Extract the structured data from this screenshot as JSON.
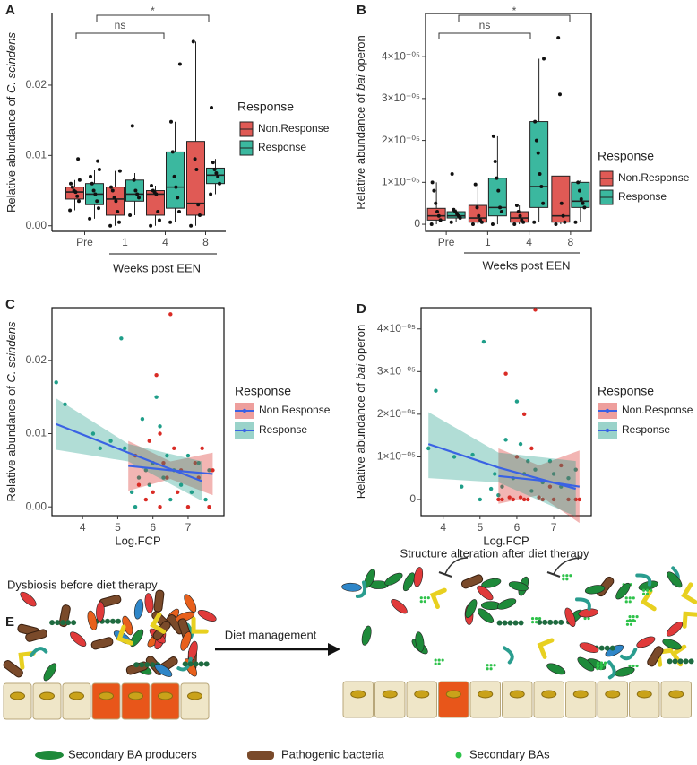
{
  "chart_data": [
    {
      "type": "box",
      "panel": "A",
      "ylabel": [
        {
          "text": "Relative abundance of "
        },
        {
          "text": "C. scindens",
          "italic": true
        }
      ],
      "xlabel": "Weeks post EEN",
      "categories": [
        "Pre",
        "1",
        "4",
        "8"
      ],
      "ylim": [
        -0.0008,
        0.0302
      ],
      "yticks": [
        {
          "value": 0,
          "label": "0.00"
        },
        0.01,
        0.02
      ],
      "annotations": [
        "ns",
        "*"
      ],
      "legend_title": "Response",
      "series": [
        {
          "name": "Non.Response",
          "color": "#e05a55",
          "boxes": [
            {
              "min": 0.0022,
              "q1": 0.0038,
              "median": 0.0048,
              "q3": 0.0055,
              "max": 0.0065,
              "points": [
                0.0022,
                0.0035,
                0.0042,
                0.0048,
                0.005,
                0.0055,
                0.006,
                0.0065,
                0.0095
              ]
            },
            {
              "min": 0,
              "q1": 0.0015,
              "median": 0.0038,
              "q3": 0.0055,
              "max": 0.0078,
              "points": [
                0,
                0.0005,
                0.002,
                0.0035,
                0.004,
                0.005,
                0.0055,
                0.0078
              ]
            },
            {
              "min": 0,
              "q1": 0.0015,
              "median": 0.0045,
              "q3": 0.005,
              "max": 0.0057,
              "points": [
                0,
                0.0008,
                0.002,
                0.0045,
                0.0048,
                0.005,
                0.0057
              ]
            },
            {
              "min": 0,
              "q1": 0.0015,
              "median": 0.0032,
              "q3": 0.012,
              "max": 0.0262,
              "points": [
                0,
                0.0015,
                0.003,
                0.008,
                0.0095,
                0.0262
              ]
            }
          ]
        },
        {
          "name": "Response",
          "color": "#3bb89f",
          "boxes": [
            {
              "min": 0.001,
              "q1": 0.003,
              "median": 0.0045,
              "q3": 0.006,
              "max": 0.008,
              "points": [
                0.001,
                0.0025,
                0.0035,
                0.0045,
                0.005,
                0.006,
                0.007,
                0.008,
                0.0092
              ]
            },
            {
              "min": 0.0015,
              "q1": 0.0035,
              "median": 0.0045,
              "q3": 0.0065,
              "max": 0.0075,
              "points": [
                0.0015,
                0.004,
                0.0045,
                0.005,
                0.0065,
                0.0142
              ]
            },
            {
              "min": 0.0005,
              "q1": 0.0025,
              "median": 0.0055,
              "q3": 0.0105,
              "max": 0.0148,
              "points": [
                0.0005,
                0.002,
                0.004,
                0.0055,
                0.007,
                0.0105,
                0.0148,
                0.023
              ]
            },
            {
              "min": 0.0045,
              "q1": 0.006,
              "median": 0.0072,
              "q3": 0.0082,
              "max": 0.0095,
              "points": [
                0.0045,
                0.006,
                0.007,
                0.0075,
                0.008,
                0.009,
                0.0168
              ]
            }
          ]
        }
      ]
    },
    {
      "type": "box",
      "panel": "B",
      "ylabel": [
        {
          "text": "Relative abundance of "
        },
        {
          "text": "bai",
          "italic": true
        },
        {
          "text": " operon"
        }
      ],
      "xlabel": "Weeks post EEN",
      "categories": [
        "Pre",
        "1",
        "4",
        "8"
      ],
      "ylim": [
        -1.7e-06,
        5.03e-05
      ],
      "yticks": [
        0,
        {
          "value": 1e-05,
          "label": "1×10⁻⁰⁵"
        },
        {
          "value": 2e-05,
          "label": "2×10⁻⁰⁵"
        },
        {
          "value": 3e-05,
          "label": "3×10⁻⁰⁵"
        },
        {
          "value": 4e-05,
          "label": "4×10⁻⁰⁵"
        }
      ],
      "annotations": [
        "ns",
        "*"
      ],
      "legend_title": "Response",
      "series": [
        {
          "name": "Non.Response",
          "color": "#e05a55",
          "boxes": [
            {
              "min": 0,
              "q1": 1e-06,
              "median": 2e-06,
              "q3": 3.8e-06,
              "max": 1e-05,
              "points": [
                0,
                1e-06,
                2e-06,
                3e-06,
                5e-06,
                8e-06,
                1e-05
              ]
            },
            {
              "min": 0,
              "q1": 5e-07,
              "median": 1.5e-06,
              "q3": 4.5e-06,
              "max": 9.5e-06,
              "points": [
                0,
                5e-07,
                1e-06,
                2e-06,
                4e-06,
                9.5e-06
              ]
            },
            {
              "min": 0,
              "q1": 5e-07,
              "median": 1.5e-06,
              "q3": 3e-06,
              "max": 4.5e-06,
              "points": [
                0,
                5e-07,
                1e-06,
                2e-06,
                3e-06,
                4.5e-06
              ]
            },
            {
              "min": 0,
              "q1": 5e-07,
              "median": 2e-06,
              "q3": 1.15e-05,
              "max": 1.15e-05,
              "points": [
                0,
                5e-07,
                2e-06,
                5e-06,
                3.1e-05,
                4.45e-05
              ]
            }
          ]
        },
        {
          "name": "Response",
          "color": "#3bb89f",
          "boxes": [
            {
              "min": 5e-07,
              "q1": 1.5e-06,
              "median": 2e-06,
              "q3": 3e-06,
              "max": 3.5e-06,
              "points": [
                5e-07,
                1.5e-06,
                2e-06,
                2.5e-06,
                3e-06,
                3.5e-06,
                1.2e-05
              ]
            },
            {
              "min": 0,
              "q1": 2e-06,
              "median": 4e-06,
              "q3": 1.1e-05,
              "max": 2.1e-05,
              "points": [
                0,
                3e-06,
                4e-06,
                8e-06,
                1.1e-05,
                1.5e-05,
                2.1e-05
              ]
            },
            {
              "min": 5e-07,
              "q1": 4e-06,
              "median": 9e-06,
              "q3": 2.45e-05,
              "max": 3.95e-05,
              "points": [
                5e-07,
                5e-06,
                9e-06,
                1.2e-05,
                1.7e-05,
                2e-05,
                2.45e-05,
                3.95e-05
              ]
            },
            {
              "min": 5e-07,
              "q1": 4e-06,
              "median": 5.5e-06,
              "q3": 1e-05,
              "max": 1.05e-05,
              "points": [
                5e-07,
                4e-06,
                5e-06,
                6e-06,
                8e-06,
                1e-05
              ]
            }
          ]
        }
      ]
    },
    {
      "type": "scatter",
      "panel": "C",
      "ylabel": [
        {
          "text": "Relative abundance of "
        },
        {
          "text": "C. scindens",
          "italic": true
        }
      ],
      "xlabel": "Log.FCP",
      "xlim": [
        3.13,
        8.02
      ],
      "xticks": [
        4,
        5,
        6,
        7
      ],
      "ylim": [
        -0.0012,
        0.0272
      ],
      "yticks": [
        {
          "value": 0,
          "label": "0.00"
        },
        0.01,
        0.02
      ],
      "legend_title": "Response",
      "fit_color": "#3a62e4",
      "series": [
        {
          "name": "Non.Response",
          "color": "#d92b25",
          "x": [
            5.5,
            5.6,
            5.8,
            5.9,
            6.0,
            6.1,
            6.2,
            6.2,
            6.3,
            6.4,
            6.5,
            6.6,
            6.7,
            6.8,
            7.0,
            7.2,
            7.3,
            7.4,
            7.6,
            7.7
          ],
          "values": [
            0.007,
            0.003,
            0.001,
            0.009,
            0.002,
            0.018,
            0.01,
            0,
            0.006,
            0.004,
            0.0263,
            0.008,
            0.002,
            0.005,
            0,
            0.006,
            0.004,
            0.008,
            0,
            0.005
          ],
          "fit": {
            "x": [
              5.3,
              6.5,
              7.7
            ],
            "values": [
              0.0056,
              0.005,
              0.0045
            ],
            "lower": [
              0.0022,
              0.0038,
              0.0016
            ],
            "upper": [
              0.009,
              0.0062,
              0.0074
            ]
          }
        },
        {
          "name": "Response",
          "color": "#1f9e89",
          "x": [
            3.25,
            3.5,
            4.3,
            4.5,
            4.8,
            5.1,
            5.2,
            5.4,
            5.5,
            5.6,
            5.7,
            5.8,
            5.9,
            6.0,
            6.1,
            6.2,
            6.3,
            6.4,
            6.5,
            6.6,
            6.8,
            7.0,
            7.1,
            7.3,
            7.5,
            7.6
          ],
          "values": [
            0.017,
            0.014,
            0.01,
            0.008,
            0.009,
            0.023,
            0.008,
            0.002,
            0,
            0.004,
            0.012,
            0.005,
            0.003,
            0.006,
            0.015,
            0.011,
            0.004,
            0.007,
            0.001,
            0.005,
            0.003,
            0.007,
            0.002,
            0.006,
            0.001,
            0.005
          ],
          "fit": {
            "x": [
              3.25,
              5.3,
              7.4
            ],
            "values": [
              0.0113,
              0.0074,
              0.0035
            ],
            "lower": [
              0.0078,
              0.0062,
              0.0008
            ],
            "upper": [
              0.0148,
              0.0086,
              0.0062
            ]
          }
        }
      ]
    },
    {
      "type": "scatter",
      "panel": "D",
      "ylabel": [
        {
          "text": "Relative abundance of "
        },
        {
          "text": "bai",
          "italic": true
        },
        {
          "text": " operon"
        }
      ],
      "xlabel": "Log.FCP",
      "xlim": [
        3.4,
        8.02
      ],
      "xticks": [
        4,
        5,
        6,
        7
      ],
      "ylim": [
        -3.8e-06,
        4.5e-05
      ],
      "yticks": [
        0,
        {
          "value": 1e-05,
          "label": "1×10⁻⁰⁵"
        },
        {
          "value": 2e-05,
          "label": "2×10⁻⁰⁵"
        },
        {
          "value": 3e-05,
          "label": "3×10⁻⁰⁵"
        },
        {
          "value": 4e-05,
          "label": "4×10⁻⁰⁵"
        }
      ],
      "legend_title": "Response",
      "fit_color": "#3a62e4",
      "series": [
        {
          "name": "Non.Response",
          "color": "#d92b25",
          "x": [
            5.5,
            5.6,
            5.7,
            5.8,
            5.9,
            6.0,
            6.1,
            6.2,
            6.2,
            6.3,
            6.4,
            6.5,
            6.6,
            6.7,
            6.9,
            7.0,
            7.2,
            7.4,
            7.6,
            7.7
          ],
          "values": [
            0,
            0,
            2.95e-05,
            5e-07,
            0,
            1e-05,
            5e-07,
            2e-05,
            0,
            0,
            1.2e-05,
            4.45e-05,
            5e-07,
            0,
            3e-06,
            0,
            8e-06,
            0,
            0,
            0
          ],
          "fit": {
            "x": [
              5.5,
              6.6,
              7.7
            ],
            "values": [
              5.5e-06,
              4.5e-06,
              3e-06
            ],
            "lower": [
              -1e-06,
              1e-06,
              -5.5e-06
            ],
            "upper": [
              1.2e-05,
              8e-06,
              1.15e-05
            ]
          }
        },
        {
          "name": "Response",
          "color": "#1f9e89",
          "x": [
            3.6,
            3.8,
            4.3,
            4.5,
            4.8,
            5.0,
            5.1,
            5.3,
            5.4,
            5.5,
            5.6,
            5.7,
            5.9,
            6.0,
            6.1,
            6.2,
            6.3,
            6.4,
            6.5,
            6.7,
            6.9,
            7.0,
            7.2,
            7.4,
            7.6
          ],
          "values": [
            1.2e-05,
            2.55e-05,
            1e-05,
            3e-06,
            1.05e-05,
            0,
            3.7e-05,
            2.5e-06,
            6e-06,
            1e-06,
            3e-06,
            1.4e-05,
            5e-06,
            2.3e-05,
            1.3e-05,
            6e-06,
            9e-06,
            2e-06,
            7e-06,
            4e-06,
            9e-06,
            6e-06,
            3e-06,
            5e-06,
            7e-06
          ],
          "fit": {
            "x": [
              3.6,
              5.5,
              7.6
            ],
            "values": [
              1.3e-05,
              7.5e-06,
              2.5e-06
            ],
            "lower": [
              5e-06,
              4e-06,
              -4e-06
            ],
            "upper": [
              2.05e-05,
              1.1e-05,
              9e-06
            ]
          }
        }
      ]
    }
  ],
  "diagram": {
    "panel": "E",
    "left_title": "Dysbiosis before diet therapy",
    "arrow_label": "Diet management",
    "right_title": "Structure alteration after diet therapy",
    "legend": [
      "Secondary BA producers",
      "Pathogenic bacteria",
      "Secondary BAs"
    ]
  }
}
